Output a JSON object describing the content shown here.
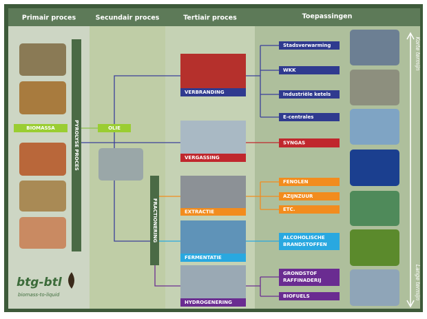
{
  "columns": [
    "Primair proces",
    "Secundair proces",
    "Tertiair proces",
    "Toepassingen"
  ],
  "primary": {
    "input": "BIOMASSA",
    "process": "PYROLYSE PROCES"
  },
  "secondary": {
    "product": "OLIE",
    "process": "FRACTIONERING"
  },
  "processes": [
    "VERBRANDING",
    "VERGASSING",
    "EXTRACTIE",
    "FERMENTATIE",
    "HYDROGENERING"
  ],
  "applications": {
    "verbranding": [
      "Stadsverwarming",
      "WKK",
      "Industriële ketels",
      "E-centrales"
    ],
    "vergassing": [
      "SYNGAS"
    ],
    "extractie": [
      "FENOLEN",
      "AZIJNZUUR",
      "ETC."
    ],
    "fermentatie": [
      [
        "ALCOHOLISCHE",
        "BRANDSTOFFEN"
      ]
    ],
    "hydrogenering": [
      [
        "GRONDSTOF",
        "RAFFINADERIJ"
      ],
      [
        "BIOFUELS"
      ]
    ]
  },
  "timeline": {
    "top": "Korte termijn",
    "bottom": "Lange termijn"
  },
  "logo": {
    "name": "btg-btl",
    "tagline": "biomass-to-liquid"
  }
}
